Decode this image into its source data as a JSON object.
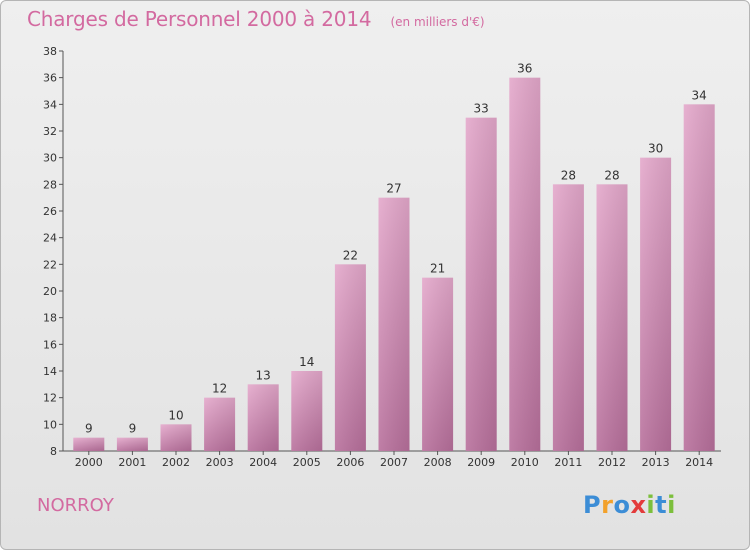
{
  "title": "Charges de Personnel 2000 à 2014",
  "subtitle": "(en milliers d'€)",
  "town": "NORROY",
  "logo": {
    "letters": [
      "P",
      "r",
      "o",
      "x",
      "i",
      "t",
      "i"
    ],
    "colors": [
      "#3c8dd6",
      "#f2a12b",
      "#3c8dd6",
      "#e33b3b",
      "#7cbf3c",
      "#3c8dd6",
      "#7cbf3c"
    ]
  },
  "chart_data": {
    "type": "bar",
    "categories": [
      "2000",
      "2001",
      "2002",
      "2003",
      "2004",
      "2005",
      "2006",
      "2007",
      "2008",
      "2009",
      "2010",
      "2011",
      "2012",
      "2013",
      "2014"
    ],
    "values": [
      9,
      9,
      10,
      12,
      13,
      14,
      22,
      27,
      21,
      33,
      36,
      28,
      28,
      30,
      34
    ],
    "ylim": [
      8,
      38
    ],
    "yticks": [
      8,
      10,
      12,
      14,
      16,
      18,
      20,
      22,
      24,
      26,
      28,
      30,
      32,
      34,
      36,
      38
    ],
    "grid": false,
    "bar_color": "#d890b9"
  }
}
